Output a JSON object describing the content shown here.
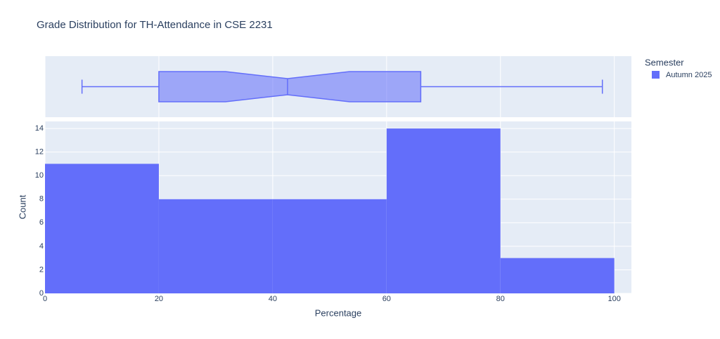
{
  "chart_data": [
    {
      "type": "box",
      "xlim": [
        0,
        103
      ],
      "xticks": [
        0,
        20,
        40,
        60,
        80,
        100
      ],
      "grid": true,
      "color": "#636efa",
      "fill": "rgba(99,110,250,0.55)",
      "min": 6.5,
      "q1": 20,
      "notch_low": 31.7,
      "median": 42.6,
      "notch_high": 53.5,
      "q3": 66,
      "max": 97.9
    },
    {
      "type": "histogram",
      "title": "Grade Distribution for TH-Attendance in CSE 2231",
      "x_label": "Percentage",
      "y_label": "Count",
      "legend_title": "Semester",
      "legend": "right",
      "grid": true,
      "bins": [
        0,
        20,
        40,
        60,
        80,
        100
      ],
      "series": [
        {
          "name": "Autumn 2025",
          "color": "#636efa",
          "values": [
            11,
            8,
            8,
            14,
            3
          ]
        }
      ],
      "xlim": [
        0,
        103
      ],
      "xticks": [
        0,
        20,
        40,
        60,
        80,
        100
      ],
      "ylim": [
        0,
        14.6
      ],
      "yticks": [
        0,
        2,
        4,
        6,
        8,
        10,
        12,
        14
      ]
    }
  ]
}
